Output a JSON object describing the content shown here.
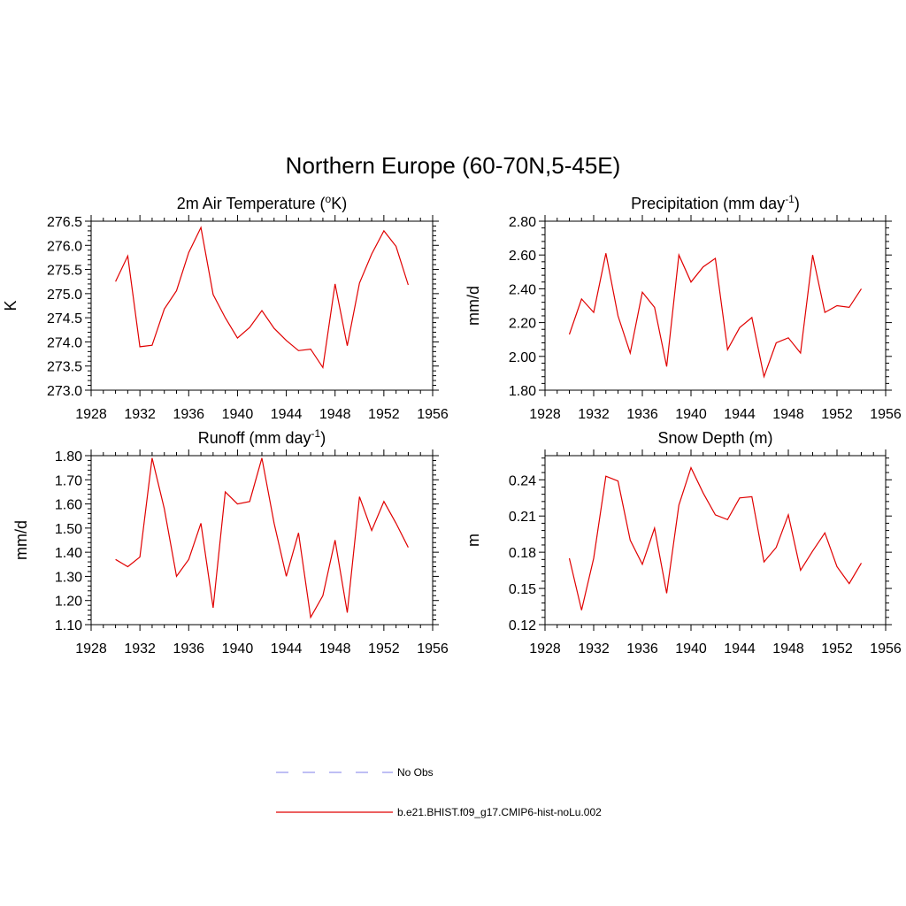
{
  "title": "Northern Europe (60-70N,5-45E)",
  "colors": {
    "model_line": "#e00000",
    "obs_line": "#9999ee",
    "axis": "#000000"
  },
  "legend": {
    "placement": "bottom-center",
    "entries": [
      {
        "label": "No Obs",
        "style": "dashed",
        "color": "#9999ee"
      },
      {
        "label": "b.e21.BHIST.f09_g17.CMIP6-hist-noLu.002",
        "style": "solid",
        "color": "#e00000"
      }
    ]
  },
  "chart_data": [
    {
      "type": "line",
      "title": "2m Air Temperature (",
      "title_sup": "o",
      "title_post": "K)",
      "ylabel": "K",
      "xlim": [
        1928,
        1956
      ],
      "ylim": [
        273.0,
        276.5
      ],
      "xticks": [
        "1928",
        "1932",
        "1936",
        "1940",
        "1944",
        "1948",
        "1952",
        "1956"
      ],
      "yticks": [
        "273.0",
        "273.5",
        "274.0",
        "274.5",
        "275.0",
        "275.5",
        "276.0",
        "276.5"
      ],
      "x": [
        1930,
        1931,
        1932,
        1933,
        1934,
        1935,
        1936,
        1937,
        1938,
        1939,
        1940,
        1941,
        1942,
        1943,
        1944,
        1945,
        1946,
        1947,
        1948,
        1949,
        1950,
        1951,
        1952,
        1953,
        1954
      ],
      "series": [
        {
          "values": [
            275.25,
            275.78,
            273.9,
            273.93,
            274.68,
            275.06,
            275.85,
            276.37,
            274.98,
            274.5,
            274.08,
            274.3,
            274.65,
            274.28,
            274.03,
            273.82,
            273.85,
            273.47,
            275.2,
            273.92,
            275.22,
            275.82,
            276.3,
            275.98,
            275.18
          ]
        }
      ]
    },
    {
      "type": "line",
      "title": "Precipitation (mm day",
      "title_sup": "-1",
      "title_post": ")",
      "ylabel": "mm/d",
      "xlim": [
        1928,
        1956
      ],
      "ylim": [
        1.8,
        2.8
      ],
      "xticks": [
        "1928",
        "1932",
        "1936",
        "1940",
        "1944",
        "1948",
        "1952",
        "1956"
      ],
      "yticks": [
        "1.80",
        "2.00",
        "2.20",
        "2.40",
        "2.60",
        "2.80"
      ],
      "x": [
        1930,
        1931,
        1932,
        1933,
        1934,
        1935,
        1936,
        1937,
        1938,
        1939,
        1940,
        1941,
        1942,
        1943,
        1944,
        1945,
        1946,
        1947,
        1948,
        1949,
        1950,
        1951,
        1952,
        1953,
        1954
      ],
      "series": [
        {
          "values": [
            2.13,
            2.34,
            2.26,
            2.61,
            2.24,
            2.02,
            2.38,
            2.29,
            1.94,
            2.6,
            2.44,
            2.53,
            2.58,
            2.04,
            2.17,
            2.23,
            1.88,
            2.08,
            2.11,
            2.02,
            2.6,
            2.26,
            2.3,
            2.29,
            2.4
          ]
        }
      ]
    },
    {
      "type": "line",
      "title": "Runoff (mm day",
      "title_sup": "-1",
      "title_post": ")",
      "ylabel": "mm/d",
      "xlim": [
        1928,
        1956
      ],
      "ylim": [
        1.1,
        1.8
      ],
      "xticks": [
        "1928",
        "1932",
        "1936",
        "1940",
        "1944",
        "1948",
        "1952",
        "1956"
      ],
      "yticks": [
        "1.10",
        "1.20",
        "1.30",
        "1.40",
        "1.50",
        "1.60",
        "1.70",
        "1.80"
      ],
      "x": [
        1930,
        1931,
        1932,
        1933,
        1934,
        1935,
        1936,
        1937,
        1938,
        1939,
        1940,
        1941,
        1942,
        1943,
        1944,
        1945,
        1946,
        1947,
        1948,
        1949,
        1950,
        1951,
        1952,
        1953,
        1954
      ],
      "series": [
        {
          "values": [
            1.37,
            1.34,
            1.38,
            1.79,
            1.58,
            1.3,
            1.37,
            1.52,
            1.17,
            1.65,
            1.6,
            1.61,
            1.79,
            1.52,
            1.3,
            1.48,
            1.13,
            1.22,
            1.45,
            1.15,
            1.63,
            1.49,
            1.61,
            1.52,
            1.42
          ]
        }
      ]
    },
    {
      "type": "line",
      "title": "Snow Depth (m)",
      "title_sup": "",
      "title_post": "",
      "ylabel": "m",
      "xlim": [
        1928,
        1956
      ],
      "ylim": [
        0.12,
        0.26
      ],
      "xticks": [
        "1928",
        "1932",
        "1936",
        "1940",
        "1944",
        "1948",
        "1952",
        "1956"
      ],
      "yticks": [
        "0.12",
        "0.15",
        "0.18",
        "0.21",
        "0.24"
      ],
      "ytick_values": [
        0.12,
        0.15,
        0.18,
        0.21,
        0.24
      ],
      "x": [
        1930,
        1931,
        1932,
        1933,
        1934,
        1935,
        1936,
        1937,
        1938,
        1939,
        1940,
        1941,
        1942,
        1943,
        1944,
        1945,
        1946,
        1947,
        1948,
        1949,
        1950,
        1951,
        1952,
        1953,
        1954
      ],
      "series": [
        {
          "values": [
            0.175,
            0.132,
            0.175,
            0.243,
            0.239,
            0.19,
            0.17,
            0.2,
            0.146,
            0.219,
            0.25,
            0.229,
            0.211,
            0.207,
            0.225,
            0.226,
            0.172,
            0.184,
            0.211,
            0.165,
            0.181,
            0.196,
            0.168,
            0.154,
            0.171
          ]
        }
      ]
    }
  ]
}
